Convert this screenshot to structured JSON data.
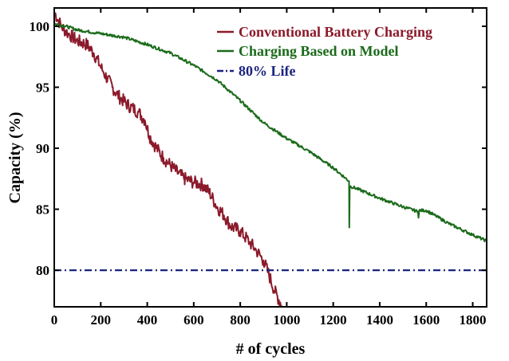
{
  "chart_data": {
    "type": "line",
    "title": "",
    "xlabel": "# of cycles",
    "ylabel": "Capacity (%)",
    "xlim": [
      0,
      1860
    ],
    "ylim": [
      77.0,
      101.5
    ],
    "x_ticks": [
      0,
      200,
      400,
      600,
      800,
      1000,
      1200,
      1400,
      1600,
      1800
    ],
    "y_ticks": [
      80,
      85,
      90,
      95,
      100
    ],
    "grid": false,
    "legend_position": "top-right",
    "series": [
      {
        "name": "Conventional Battery Charging",
        "color": "#8b1a2b",
        "style": "solid",
        "noise": 0.55,
        "points": [
          [
            0,
            101.2
          ],
          [
            30,
            100.0
          ],
          [
            60,
            99.4
          ],
          [
            100,
            98.8
          ],
          [
            140,
            98.5
          ],
          [
            170,
            97.8
          ],
          [
            210,
            96.3
          ],
          [
            250,
            95.0
          ],
          [
            280,
            94.2
          ],
          [
            320,
            93.5
          ],
          [
            360,
            93.0
          ],
          [
            390,
            92.3
          ],
          [
            410,
            91.0
          ],
          [
            440,
            90.0
          ],
          [
            470,
            89.2
          ],
          [
            500,
            88.6
          ],
          [
            530,
            88.0
          ],
          [
            560,
            87.5
          ],
          [
            600,
            87.2
          ],
          [
            640,
            87.0
          ],
          [
            670,
            86.3
          ],
          [
            700,
            85.2
          ],
          [
            730,
            84.5
          ],
          [
            760,
            83.6
          ],
          [
            800,
            83.2
          ],
          [
            840,
            82.3
          ],
          [
            870,
            81.6
          ],
          [
            900,
            80.8
          ],
          [
            920,
            79.8
          ],
          [
            950,
            78.2
          ],
          [
            980,
            77.1
          ]
        ]
      },
      {
        "name": "Charging Based on Model",
        "color": "#1a6b1a",
        "style": "solid",
        "noise": 0.12,
        "points": [
          [
            0,
            100.2
          ],
          [
            50,
            100.0
          ],
          [
            100,
            99.7
          ],
          [
            200,
            99.4
          ],
          [
            300,
            99.1
          ],
          [
            400,
            98.5
          ],
          [
            500,
            97.8
          ],
          [
            600,
            96.8
          ],
          [
            700,
            95.6
          ],
          [
            800,
            93.9
          ],
          [
            900,
            92.1
          ],
          [
            1000,
            90.8
          ],
          [
            1100,
            89.7
          ],
          [
            1200,
            88.4
          ],
          [
            1268,
            87.3
          ],
          [
            1269,
            83.5
          ],
          [
            1271,
            86.9
          ],
          [
            1300,
            86.7
          ],
          [
            1400,
            85.9
          ],
          [
            1500,
            85.2
          ],
          [
            1565,
            84.8
          ],
          [
            1567,
            84.3
          ],
          [
            1570,
            84.9
          ],
          [
            1600,
            84.9
          ],
          [
            1700,
            83.8
          ],
          [
            1800,
            82.9
          ],
          [
            1860,
            82.4
          ]
        ]
      },
      {
        "name": "80% Life",
        "color": "#1a2380",
        "style": "dashdot",
        "noise": 0,
        "points": [
          [
            0,
            80
          ],
          [
            1860,
            80
          ]
        ]
      }
    ]
  }
}
